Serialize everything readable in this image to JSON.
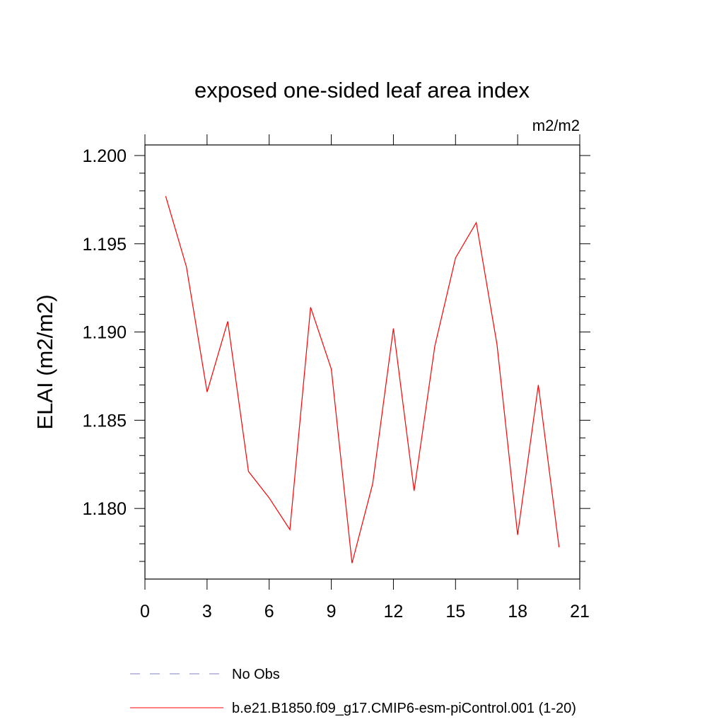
{
  "chart_data": {
    "type": "line",
    "title": "exposed one-sided leaf area index",
    "units_label": "m2/m2",
    "ylabel": "ELAI  (m2/m2)",
    "xlabel": "",
    "xlim": [
      0,
      21
    ],
    "ylim": [
      1.176,
      1.2006
    ],
    "x_ticks": [
      0,
      3,
      6,
      9,
      12,
      15,
      18,
      21
    ],
    "x_tick_labels": [
      "0",
      "3",
      "6",
      "9",
      "12",
      "15",
      "18",
      "21"
    ],
    "y_ticks": [
      1.18,
      1.185,
      1.19,
      1.195,
      1.2
    ],
    "y_tick_labels": [
      "1.180",
      "1.185",
      "1.190",
      "1.195",
      "1.200"
    ],
    "grid": false,
    "series": [
      {
        "name": "b.e21.B1850.f09_g17.CMIP6-esm-piControl.001 (1-20)",
        "color": "#ff0000",
        "style": "solid",
        "x": [
          1,
          2,
          3,
          4,
          5,
          6,
          7,
          8,
          9,
          10,
          11,
          12,
          13,
          14,
          15,
          16,
          17,
          18,
          19,
          20
        ],
        "values": [
          1.1977,
          1.1937,
          1.1866,
          1.1906,
          1.1821,
          1.1806,
          1.1788,
          1.1914,
          1.1879,
          1.1769,
          1.1814,
          1.1902,
          1.181,
          1.1892,
          1.1942,
          1.1962,
          1.1893,
          1.1785,
          1.187,
          1.1778
        ]
      }
    ],
    "legend": [
      {
        "label": "No Obs",
        "color": "#8080c0",
        "style": "dashed"
      },
      {
        "label": "b.e21.B1850.f09_g17.CMIP6-esm-piControl.001 (1-20)",
        "color": "#ff0000",
        "style": "solid"
      }
    ],
    "legend_position": "bottom"
  }
}
